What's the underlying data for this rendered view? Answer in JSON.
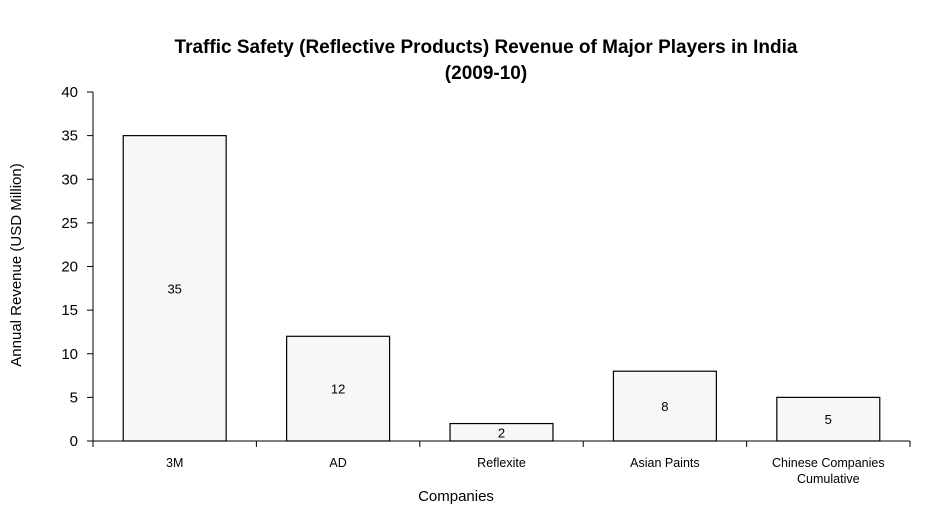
{
  "chart_data": {
    "type": "bar",
    "title": "Traffic Safety (Reflective Products)  Revenue of Major Players in India",
    "subtitle": "(2009-10)",
    "xlabel": "Companies",
    "ylabel": "Annual Revenue (USD Million)",
    "categories": [
      [
        "3M"
      ],
      [
        "AD"
      ],
      [
        "Reflexite"
      ],
      [
        "Asian Paints"
      ],
      [
        "Chinese Companies",
        "Cumulative"
      ]
    ],
    "values": [
      35,
      12,
      2,
      8,
      5
    ],
    "data_labels": [
      "35",
      "12",
      "2",
      "8",
      "5"
    ],
    "ylim": [
      0,
      40
    ],
    "yticks": [
      0,
      5,
      10,
      15,
      20,
      25,
      30,
      35,
      40
    ],
    "grid": false,
    "legend": "none",
    "colors": {
      "bar_fill": "#f7f7f7",
      "bar_stroke": "#000000",
      "axis": "#000000"
    }
  }
}
